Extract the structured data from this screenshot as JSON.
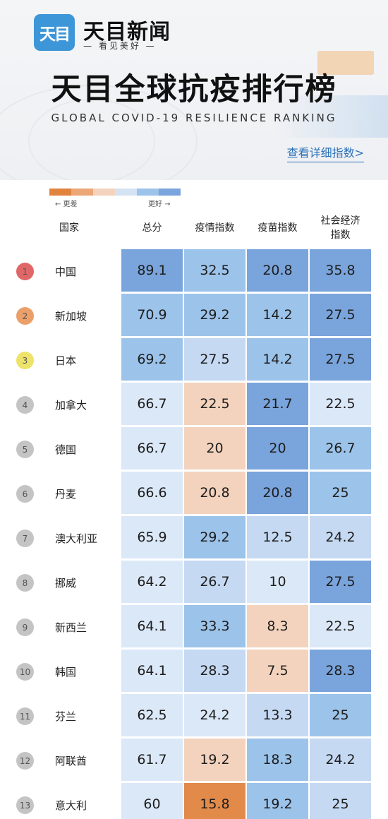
{
  "header": {
    "logo_text": "天目",
    "brand_name": "天目新闻",
    "slogan": "— 看见美好 —",
    "title": "天目全球抗疫排行榜",
    "subtitle": "GLOBAL COVID-19 RESILIENCE RANKING",
    "details_link": "查看详细指数>"
  },
  "legend": {
    "worse_label": "← 更差",
    "better_label": "更好 →",
    "colors": [
      "#e0833d",
      "#eda777",
      "#f3d3bd",
      "#d4e3f4",
      "#9cc3ea",
      "#7aa4dc"
    ]
  },
  "colors": {
    "c1": "#e28a4a",
    "c2": "#f3d3bd",
    "c3": "#dbe8f7",
    "c4": "#c5d9f2",
    "c5": "#9cc3ea",
    "c6": "#7aa4dc",
    "rank_gold": "#e06767",
    "rank_orange": "#eba06a",
    "rank_yellow": "#eee36a",
    "rank_gray": "#c4c4c4"
  },
  "chart_data": {
    "type": "table",
    "columns": [
      "国家",
      "总分",
      "疫情指数",
      "疫苗指数",
      "社会经济指数"
    ],
    "column_display": [
      "国家",
      "总分",
      "疫情指数",
      "疫苗指数",
      "社会经济\n指数"
    ],
    "rows": [
      {
        "rank": "1",
        "country": "中国",
        "total": "89.1",
        "epidemic": "32.5",
        "vaccine": "20.8",
        "economy": "35.8"
      },
      {
        "rank": "2",
        "country": "新加坡",
        "total": "70.9",
        "epidemic": "29.2",
        "vaccine": "14.2",
        "economy": "27.5"
      },
      {
        "rank": "3",
        "country": "日本",
        "total": "69.2",
        "epidemic": "27.5",
        "vaccine": "14.2",
        "economy": "27.5"
      },
      {
        "rank": "4",
        "country": "加拿大",
        "total": "66.7",
        "epidemic": "22.5",
        "vaccine": "21.7",
        "economy": "22.5"
      },
      {
        "rank": "5",
        "country": "德国",
        "total": "66.7",
        "epidemic": "20",
        "vaccine": "20",
        "economy": "26.7"
      },
      {
        "rank": "6",
        "country": "丹麦",
        "total": "66.6",
        "epidemic": "20.8",
        "vaccine": "20.8",
        "economy": "25"
      },
      {
        "rank": "7",
        "country": "澳大利亚",
        "total": "65.9",
        "epidemic": "29.2",
        "vaccine": "12.5",
        "economy": "24.2"
      },
      {
        "rank": "8",
        "country": "挪威",
        "total": "64.2",
        "epidemic": "26.7",
        "vaccine": "10",
        "economy": "27.5"
      },
      {
        "rank": "9",
        "country": "新西兰",
        "total": "64.1",
        "epidemic": "33.3",
        "vaccine": "8.3",
        "economy": "22.5"
      },
      {
        "rank": "10",
        "country": "韩国",
        "total": "64.1",
        "epidemic": "28.3",
        "vaccine": "7.5",
        "economy": "28.3"
      },
      {
        "rank": "11",
        "country": "芬兰",
        "total": "62.5",
        "epidemic": "24.2",
        "vaccine": "13.3",
        "economy": "25"
      },
      {
        "rank": "12",
        "country": "阿联酋",
        "total": "61.7",
        "epidemic": "19.2",
        "vaccine": "18.3",
        "economy": "24.2"
      },
      {
        "rank": "13",
        "country": "意大利",
        "total": "60",
        "epidemic": "15.8",
        "vaccine": "19.2",
        "economy": "25"
      }
    ],
    "cell_shades": [
      [
        "c6",
        "c5",
        "c6",
        "c6"
      ],
      [
        "c5",
        "c5",
        "c5",
        "c6"
      ],
      [
        "c5",
        "c4",
        "c5",
        "c6"
      ],
      [
        "c3",
        "c2",
        "c6",
        "c3"
      ],
      [
        "c3",
        "c2",
        "c6",
        "c5"
      ],
      [
        "c3",
        "c2",
        "c6",
        "c5"
      ],
      [
        "c3",
        "c5",
        "c4",
        "c4"
      ],
      [
        "c3",
        "c4",
        "c3",
        "c6"
      ],
      [
        "c3",
        "c5",
        "c2",
        "c3"
      ],
      [
        "c3",
        "c4",
        "c2",
        "c6"
      ],
      [
        "c3",
        "c3",
        "c4",
        "c5"
      ],
      [
        "c3",
        "c2",
        "c5",
        "c4"
      ],
      [
        "c3",
        "c1",
        "c5",
        "c4"
      ]
    ],
    "rank_shades": [
      "rank_gold",
      "rank_orange",
      "rank_yellow",
      "rank_gray",
      "rank_gray",
      "rank_gray",
      "rank_gray",
      "rank_gray",
      "rank_gray",
      "rank_gray",
      "rank_gray",
      "rank_gray",
      "rank_gray"
    ]
  }
}
